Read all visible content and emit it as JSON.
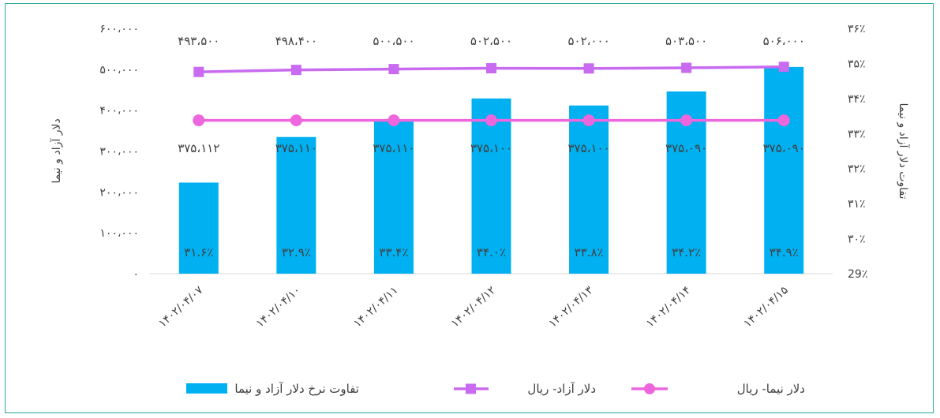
{
  "chart_data": {
    "type": "bar",
    "categories": [
      "۱۴۰۲/۰۴/۰۷",
      "۱۴۰۲/۰۴/۱۰",
      "۱۴۰۲/۰۴/۱۱",
      "۱۴۰۲/۰۴/۱۲",
      "۱۴۰۲/۰۴/۱۳",
      "۱۴۰۲/۰۴/۱۴",
      "۱۴۰۲/۰۴/۱۵"
    ],
    "y_left": {
      "label": "دلار آزاد و نیما",
      "ylim": [
        0,
        600000
      ],
      "ticks": [
        "۰",
        "۱۰۰،۰۰۰",
        "۲۰۰،۰۰۰",
        "۳۰۰،۰۰۰",
        "۴۰۰،۰۰۰",
        "۵۰۰،۰۰۰",
        "۶۰۰،۰۰۰"
      ]
    },
    "y_right": {
      "label": "تفاوت دلار آزاد و نیما",
      "ylim": [
        29,
        36
      ],
      "ticks": [
        "29٪",
        "۳۰٪",
        "۳۱٪",
        "۳۲٪",
        "۳۳٪",
        "۳۴٪",
        "۳۵٪",
        "۳۶٪"
      ]
    },
    "series": [
      {
        "name": "تفاوت نرخ دلار آزاد و نیما",
        "kind": "bar",
        "axis": "right",
        "color": "#00b0f0",
        "values": [
          31.6,
          32.9,
          33.4,
          34.0,
          33.8,
          34.2,
          34.9
        ],
        "labels": [
          "۳۱.۶٪",
          "۳۲.۹٪",
          "۳۳.۴٪",
          "۳۴.۰٪",
          "۳۳.۸٪",
          "۳۴.۲٪",
          "۳۴.۹٪"
        ]
      },
      {
        "name": "دلار آزاد- ریال",
        "kind": "line",
        "axis": "left",
        "marker": "square",
        "color": "#c86bf0",
        "values": [
          493500,
          498400,
          500500,
          502500,
          502000,
          503500,
          506000
        ],
        "labels": [
          "۴۹۳،۵۰۰",
          "۴۹۸،۴۰۰",
          "۵۰۰،۵۰۰",
          "۵۰۲،۵۰۰",
          "۵۰۲،۰۰۰",
          "۵۰۳،۵۰۰",
          "۵۰۶،۰۰۰"
        ]
      },
      {
        "name": "دلار نیما- ریال",
        "kind": "line",
        "axis": "left",
        "marker": "circle",
        "color": "#ee66dd",
        "values": [
          375112,
          375110,
          375110,
          375100,
          375100,
          375090,
          375090
        ],
        "labels": [
          "۳۷۵،۱۱۲",
          "۳۷۵،۱۱۰",
          "۳۷۵،۱۱۰",
          "۳۷۵،۱۰۰",
          "۳۷۵،۱۰۰",
          "۳۷۵،۰۹۰",
          "۳۷۵،۰۹۰"
        ]
      }
    ],
    "legend": {
      "placement": "bottom"
    },
    "grid": false
  }
}
